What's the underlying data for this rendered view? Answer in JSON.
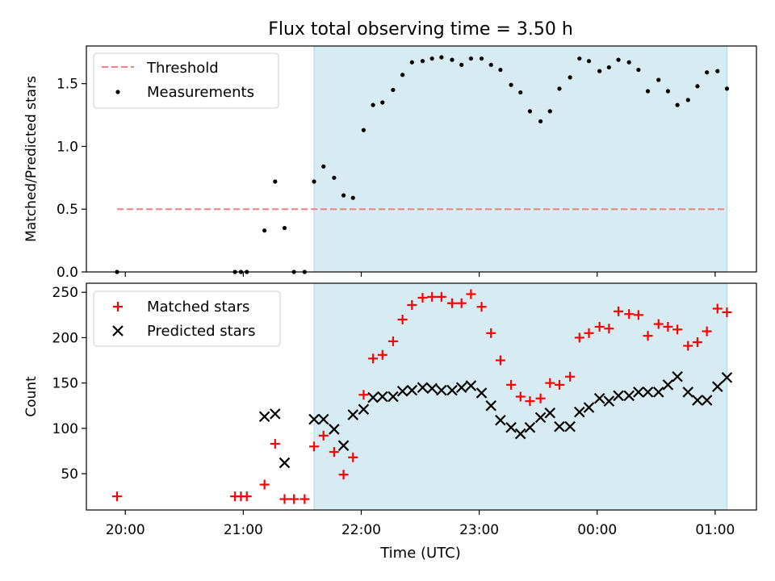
{
  "chart_data": {
    "type": "scatter",
    "title": "Flux total observing time = 3.50 h",
    "xlabel": "Time (UTC)",
    "x_ticks": [
      "20:00",
      "21:00",
      "22:00",
      "23:00",
      "00:00",
      "01:00"
    ],
    "x_tick_hours": [
      20,
      21,
      22,
      23,
      24,
      25
    ],
    "xlim_hours": [
      19.67,
      25.35
    ],
    "observing_window_hours": [
      21.6,
      25.1
    ],
    "colors": {
      "threshold": "#f08080",
      "measurements": "#000000",
      "matched": "#ff0000",
      "predicted": "#000000",
      "shade": "#add8e6"
    },
    "panels": [
      {
        "ylabel": "Matched/Predicted stars",
        "ylim": [
          0,
          1.8
        ],
        "y_ticks": [
          0.0,
          0.5,
          1.0,
          1.5
        ],
        "y_tick_labels": [
          "0.0",
          "0.5",
          "1.0",
          "1.5"
        ],
        "legend": [
          "Threshold",
          "Measurements"
        ],
        "threshold": {
          "name": "Threshold",
          "value": 0.5,
          "x_range_hours": [
            19.93,
            25.1
          ]
        },
        "series": [
          {
            "name": "Measurements",
            "marker": "dot",
            "x_hours": [
              19.93,
              20.93,
              20.98,
              21.03,
              21.18,
              21.27,
              21.35,
              21.43,
              21.52,
              21.6,
              21.68,
              21.77,
              21.85,
              21.93,
              22.02,
              22.1,
              22.18,
              22.27,
              22.35,
              22.43,
              22.52,
              22.6,
              22.68,
              22.77,
              22.85,
              22.93,
              23.02,
              23.1,
              23.18,
              23.27,
              23.35,
              23.43,
              23.52,
              23.6,
              23.68,
              23.77,
              23.85,
              23.93,
              24.02,
              24.1,
              24.18,
              24.27,
              24.35,
              24.43,
              24.52,
              24.6,
              24.68,
              24.77,
              24.85,
              24.93,
              25.02,
              25.1
            ],
            "values": [
              0.0,
              0.0,
              0.0,
              0.0,
              0.33,
              0.72,
              0.35,
              0.0,
              0.0,
              0.72,
              0.84,
              0.75,
              0.61,
              0.59,
              1.13,
              1.33,
              1.35,
              1.45,
              1.57,
              1.67,
              1.68,
              1.7,
              1.71,
              1.69,
              1.65,
              1.7,
              1.7,
              1.65,
              1.61,
              1.49,
              1.43,
              1.28,
              1.2,
              1.28,
              1.46,
              1.55,
              1.7,
              1.68,
              1.6,
              1.63,
              1.69,
              1.67,
              1.61,
              1.44,
              1.53,
              1.44,
              1.33,
              1.37,
              1.48,
              1.59,
              1.6,
              1.46
            ]
          }
        ]
      },
      {
        "ylabel": "Count",
        "ylim": [
          10,
          260
        ],
        "y_ticks": [
          50,
          100,
          150,
          200,
          250
        ],
        "y_tick_labels": [
          "50",
          "100",
          "150",
          "200",
          "250"
        ],
        "legend": [
          "Matched stars",
          "Predicted stars"
        ],
        "series": [
          {
            "name": "Matched stars",
            "marker": "plus",
            "x_hours": [
              19.93,
              20.93,
              20.98,
              21.03,
              21.18,
              21.27,
              21.35,
              21.43,
              21.52,
              21.6,
              21.68,
              21.77,
              21.85,
              21.93,
              22.02,
              22.1,
              22.18,
              22.27,
              22.35,
              22.43,
              22.52,
              22.6,
              22.68,
              22.77,
              22.85,
              22.93,
              23.02,
              23.1,
              23.18,
              23.27,
              23.35,
              23.43,
              23.52,
              23.6,
              23.68,
              23.77,
              23.85,
              23.93,
              24.02,
              24.1,
              24.18,
              24.27,
              24.35,
              24.43,
              24.52,
              24.6,
              24.68,
              24.77,
              24.85,
              24.93,
              25.02,
              25.1
            ],
            "values": [
              25,
              25,
              25,
              25,
              38,
              83,
              22,
              22,
              22,
              80,
              92,
              74,
              49,
              68,
              137,
              177,
              181,
              196,
              220,
              236,
              244,
              245,
              245,
              238,
              238,
              248,
              234,
              205,
              175,
              148,
              135,
              130,
              133,
              150,
              148,
              157,
              200,
              205,
              212,
              210,
              229,
              226,
              225,
              202,
              215,
              212,
              209,
              191,
              195,
              207,
              232,
              228
            ]
          },
          {
            "name": "Predicted stars",
            "marker": "x",
            "x_hours": [
              21.18,
              21.27,
              21.35,
              21.6,
              21.68,
              21.77,
              21.85,
              21.93,
              22.02,
              22.1,
              22.18,
              22.27,
              22.35,
              22.43,
              22.52,
              22.6,
              22.68,
              22.77,
              22.85,
              22.93,
              23.02,
              23.1,
              23.18,
              23.27,
              23.35,
              23.43,
              23.52,
              23.6,
              23.68,
              23.77,
              23.85,
              23.93,
              24.02,
              24.1,
              24.18,
              24.27,
              24.35,
              24.43,
              24.52,
              24.6,
              24.68,
              24.77,
              24.85,
              24.93,
              25.02,
              25.1
            ],
            "values": [
              113,
              116,
              62,
              110,
              110,
              99,
              81,
              115,
              121,
              134,
              135,
              135,
              141,
              142,
              145,
              144,
              142,
              142,
              145,
              147,
              139,
              125,
              109,
              101,
              94,
              101,
              112,
              117,
              102,
              102,
              118,
              123,
              133,
              130,
              136,
              136,
              140,
              140,
              140,
              148,
              157,
              140,
              131,
              131,
              146,
              156
            ]
          }
        ]
      }
    ]
  }
}
